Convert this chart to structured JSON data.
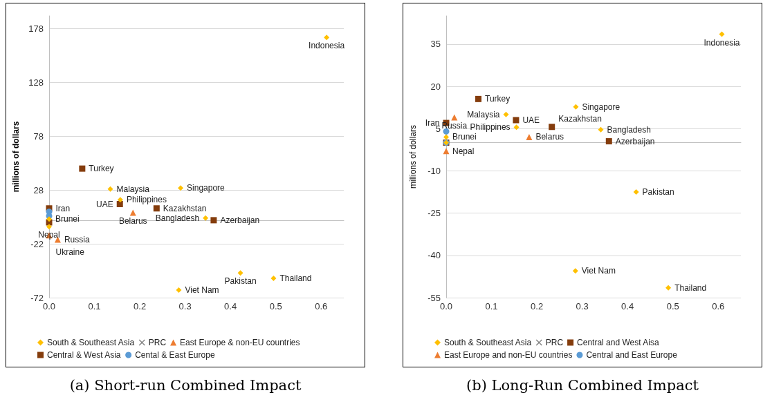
{
  "chart_data": [
    {
      "type": "scatter",
      "title": "(a) Short-run Combined Impact",
      "ylabel": "millions of dollars",
      "xlim": [
        0,
        0.65
      ],
      "xticks": [
        {
          "value": 0,
          "label": "0.0"
        },
        0.1,
        0.2,
        0.3,
        0.4,
        0.5,
        0.6
      ],
      "ylim": [
        -72,
        190
      ],
      "yticks": [
        -72,
        -22,
        28,
        78,
        128,
        178
      ],
      "grid": "y",
      "legend": "bottom",
      "series": [
        {
          "name": "South & Southeast Asia",
          "color": "#ffc000",
          "marker": "diamond",
          "x": [
            0.612,
            0.135,
            0.29,
            0.157,
            0.345,
            0,
            0,
            0.422,
            0.495,
            0.286
          ],
          "values": [
            170,
            29,
            30,
            19,
            2,
            1,
            -6,
            -49,
            -54,
            -65
          ],
          "value_labels": [
            "Indonesia",
            "Malaysia",
            "Singapore",
            "Philippines",
            "Bangladesh",
            "Brunei",
            "Nepal",
            "Pakistan",
            "Thailand",
            "Viet Nam"
          ]
        },
        {
          "name": "PRC",
          "color": "#7f7f7f",
          "marker": "cross"
        },
        {
          "name": "East Europe & non-EU countries",
          "color": "#ed7d31",
          "marker": "triangle",
          "x": [
            0.185,
            0.019,
            0
          ],
          "values": [
            7,
            -18,
            -14
          ],
          "value_labels": [
            "Belarus",
            "Russia",
            "Ukraine"
          ]
        },
        {
          "name": "Central & West Asia",
          "color": "#843c0c",
          "marker": "square",
          "x": [
            0.073,
            0.156,
            0.237,
            0.363,
            0,
            0
          ],
          "values": [
            48,
            15,
            11,
            0,
            11,
            -2
          ],
          "value_labels": [
            "Turkey",
            "UAE",
            "Kazakhstan",
            "Azerbaijan",
            "Iran",
            null
          ]
        },
        {
          "name": "Cental & East Europe",
          "color": "#5b9bd5",
          "marker": "circle",
          "x": [
            0,
            0
          ],
          "values": [
            8,
            4
          ]
        }
      ]
    },
    {
      "type": "scatter",
      "title": "(b) Long-Run Combined Impact",
      "ylabel": "millions of dollars",
      "xlim": [
        0,
        0.65
      ],
      "xticks": [
        {
          "value": 0,
          "label": "0.0"
        },
        0.1,
        0.2,
        0.3,
        0.4,
        0.5,
        0.6
      ],
      "ylim": [
        -55,
        45
      ],
      "yticks": [
        -55,
        -40,
        -25,
        -10,
        5,
        20,
        35
      ],
      "grid": "y",
      "legend": "bottom",
      "series": [
        {
          "name": "South & Southeast Asia",
          "color": "#ffc000",
          "marker": "diamond",
          "x": [
            0.608,
            0.132,
            0.286,
            0.155,
            0.341,
            0,
            0,
            0.419,
            0.49,
            0.285
          ],
          "values": [
            38.5,
            10,
            12.7,
            5.5,
            4.6,
            2,
            0,
            -17.5,
            -51.5,
            -45.5
          ],
          "value_labels": [
            "Indonesia",
            "Malaysia",
            "Singapore",
            "Philippines",
            "Bangladesh",
            "Brunei",
            "Nepal",
            "Pakistan",
            "Thailand",
            "Viet Nam"
          ]
        },
        {
          "name": "PRC",
          "color": "#7f7f7f",
          "marker": "cross"
        },
        {
          "name": "Central and West Aisa",
          "color": "#843c0c",
          "marker": "square",
          "x": [
            0.071,
            0.154,
            0.233,
            0.359,
            0,
            0
          ],
          "values": [
            15.5,
            8,
            5.6,
            0.5,
            7,
            0
          ],
          "value_labels": [
            "Turkey",
            "UAE",
            "Kazakhstan",
            "Azerbaijan",
            "Iran",
            null
          ]
        },
        {
          "name": "East Europe and non-EU countries",
          "color": "#ed7d31",
          "marker": "triangle",
          "x": [
            0.018,
            0.183,
            0
          ],
          "values": [
            9,
            2,
            -3
          ],
          "value_labels": [
            "Russia",
            "Belarus",
            null
          ]
        },
        {
          "name": "Central and East Europe",
          "color": "#5b9bd5",
          "marker": "circle",
          "x": [
            0,
            0
          ],
          "values": [
            4,
            0
          ]
        }
      ]
    }
  ]
}
